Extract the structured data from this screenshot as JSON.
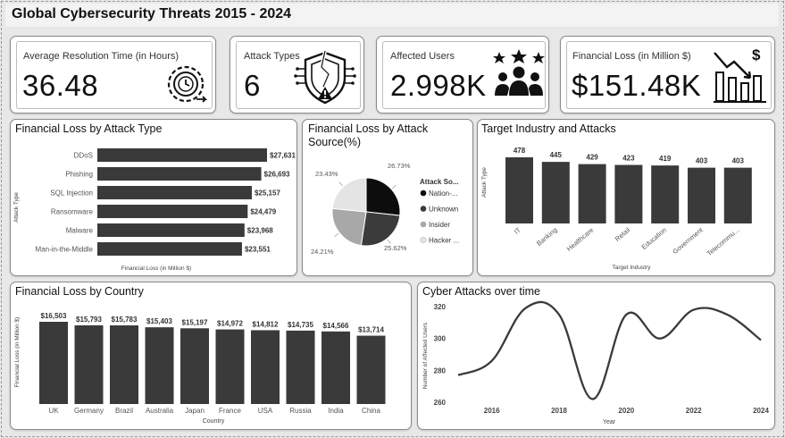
{
  "dashboard": {
    "title": "Global Cybersecurity Threats 2015 - 2024"
  },
  "kpis": {
    "resolution": {
      "label": "Average Resolution Time (in Hours)",
      "value": "36.48",
      "icon": "gear-clock-icon"
    },
    "attack_types": {
      "label": "Attack Types",
      "value": "6",
      "icon": "broken-shield-icon"
    },
    "affected_users": {
      "label": "Affected Users",
      "value": "2.998K",
      "icon": "users-stars-icon"
    },
    "financial_loss": {
      "label": "Financial Loss (in Million $)",
      "value": "$151.48K",
      "icon": "loss-chart-icon"
    }
  },
  "colors": {
    "bar": "#3a3a3a",
    "card_border": "#8a8a8a",
    "background": "#e8e8e8"
  },
  "chart_data": [
    {
      "id": "loss_by_attack_type",
      "type": "bar",
      "orientation": "horizontal",
      "title": "Financial Loss by Attack Type",
      "xlabel": "Financial Loss (in Million $)",
      "ylabel": "Attack Type",
      "categories": [
        "DDoS",
        "Phishing",
        "SQL Injection",
        "Ransomware",
        "Malware",
        "Man-in-the-Middle"
      ],
      "values": [
        27631,
        26693,
        25157,
        24479,
        23968,
        23551
      ],
      "labels": [
        "$27,631",
        "$26,693",
        "$25,157",
        "$24,479",
        "$23,968",
        "$23,551"
      ]
    },
    {
      "id": "loss_by_source",
      "type": "pie",
      "title": "Financial Loss by Attack Source(%)",
      "legend_title": "Attack So...",
      "legend_position": "right",
      "categories": [
        "Nation-...",
        "Unknown",
        "Insider",
        "Hacker ..."
      ],
      "values": [
        26.73,
        25.62,
        24.21,
        23.43
      ],
      "labels": [
        "26.73%",
        "25.62%",
        "24.21%",
        "23.43%"
      ],
      "colors": [
        "#0d0d0d",
        "#3b3b3b",
        "#a8a8a8",
        "#e4e4e4"
      ]
    },
    {
      "id": "target_industry",
      "type": "bar",
      "title": "Target Industry and Attacks",
      "xlabel": "Target Industry",
      "ylabel": "Attack Type",
      "categories": [
        "IT",
        "Banking",
        "Healthcare",
        "Retail",
        "Education",
        "Government",
        "Telecommu..."
      ],
      "values": [
        478,
        445,
        429,
        423,
        419,
        403,
        403
      ],
      "labels": [
        "478",
        "445",
        "429",
        "423",
        "419",
        "403",
        "403"
      ]
    },
    {
      "id": "loss_by_country",
      "type": "bar",
      "title": "Financial Loss by Country",
      "xlabel": "Country",
      "ylabel": "Financial Loss (in Million $)",
      "categories": [
        "UK",
        "Germany",
        "Brazil",
        "Australia",
        "Japan",
        "France",
        "USA",
        "Russia",
        "India",
        "China"
      ],
      "values": [
        16503,
        15793,
        15783,
        15403,
        15197,
        14972,
        14812,
        14735,
        14566,
        13714
      ],
      "labels": [
        "$16,503",
        "$15,793",
        "$15,783",
        "$15,403",
        "$15,197",
        "$14,972",
        "$14,812",
        "$14,735",
        "$14,566",
        "$13,714"
      ]
    },
    {
      "id": "attacks_over_time",
      "type": "line",
      "title": "Cyber Attacks over time",
      "xlabel": "Year",
      "ylabel": "Number of Affected Users",
      "x": [
        2015,
        2016,
        2017,
        2018,
        2019,
        2020,
        2021,
        2022,
        2023,
        2024
      ],
      "y": [
        277,
        286,
        319,
        315,
        262,
        315,
        300,
        318,
        315,
        299
      ],
      "xticks": [
        "2016",
        "2018",
        "2020",
        "2022",
        "2024"
      ],
      "yticks": [
        "260",
        "280",
        "300",
        "320"
      ],
      "ylim": [
        260,
        320
      ]
    }
  ]
}
